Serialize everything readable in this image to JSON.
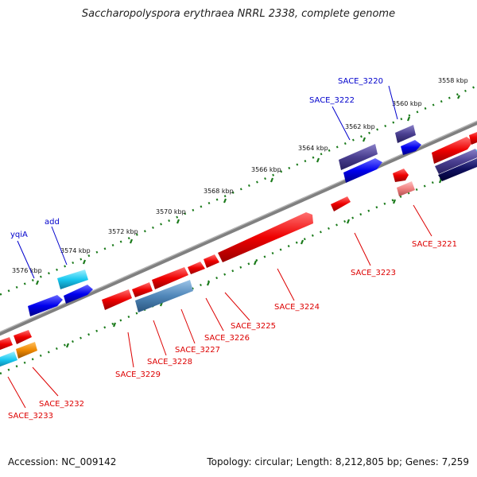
{
  "title": "Saccharopolyspora erythraea NRRL 2338, complete genome",
  "footer": {
    "accession": "Accession: NC_009142",
    "summary": "Topology: circular; Length: 8,212,805 bp; Genes: 7,259"
  },
  "ticks": [
    "3558 kbp",
    "3560 kbp",
    "3562 kbp",
    "3564 kbp",
    "3566 kbp",
    "3568 kbp",
    "3570 kbp",
    "3572 kbp",
    "3574 kbp",
    "3576 kbp"
  ],
  "genes_forward": [
    "SACE_3220",
    "SACE_3222",
    "add",
    "yqiA"
  ],
  "genes_reverse": [
    "SACE_3221",
    "SACE_3223",
    "SACE_3224",
    "SACE_3225",
    "SACE_3226",
    "SACE_3227",
    "SACE_3228",
    "SACE_3229",
    "SACE_3232",
    "SACE_3233"
  ],
  "colors": {
    "forward_label": "#0000cc",
    "reverse_label": "#dd0000",
    "backbone": "#808080",
    "tick_dots": "#1a7a1a"
  }
}
